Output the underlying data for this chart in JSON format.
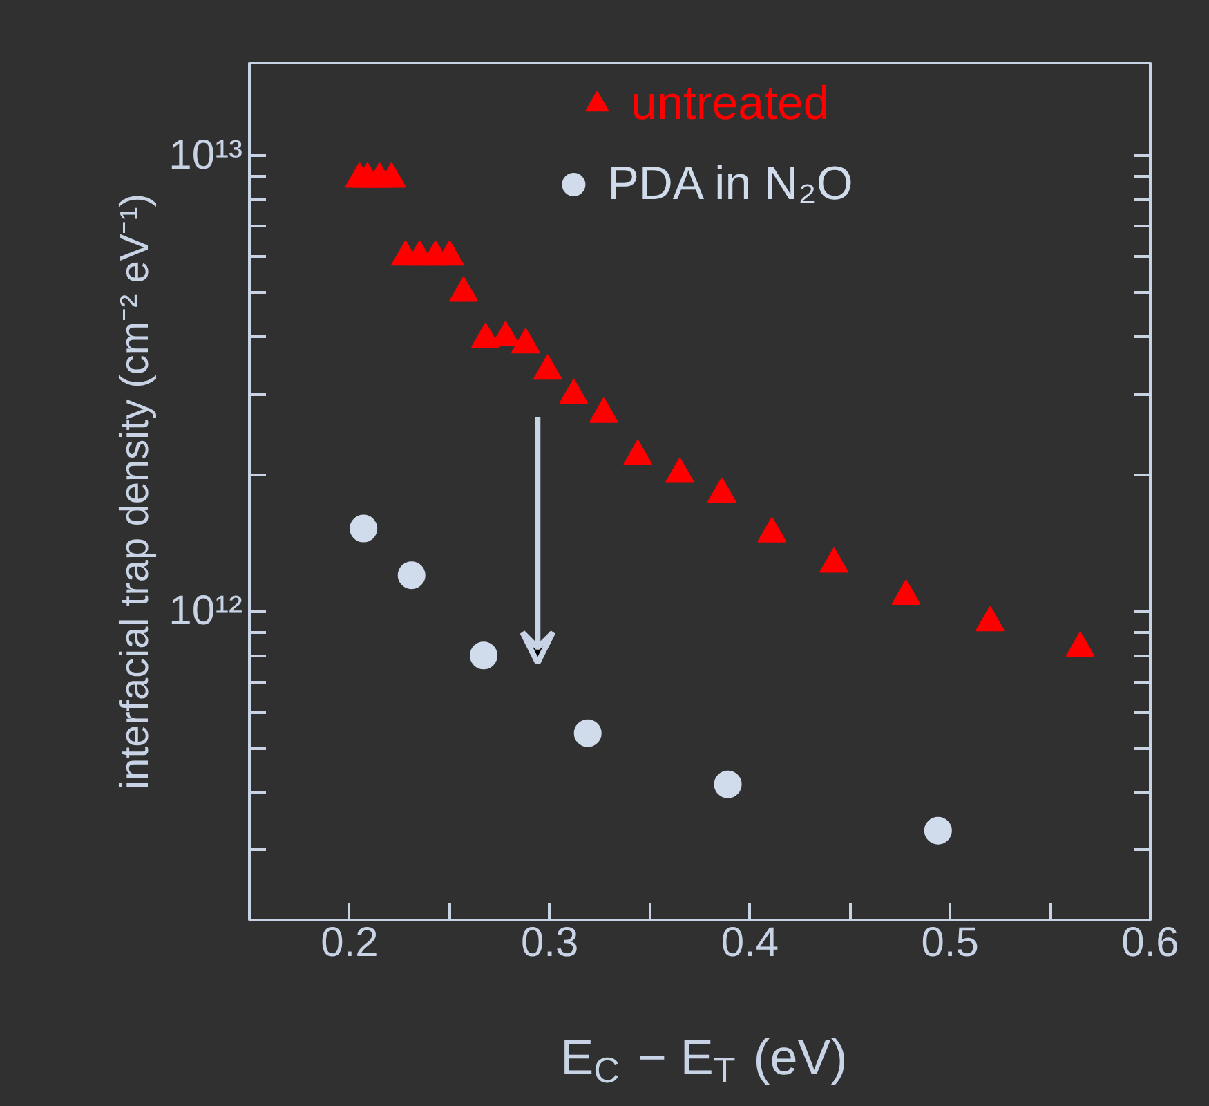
{
  "chart_data": {
    "type": "scatter",
    "log": "y",
    "grid": false,
    "legend": "top",
    "xlabel": "E$_{C}$ − E$_{T}$ (eV)",
    "ylabel": "interfacial trap density (cm⁻² eV⁻¹)",
    "xlim": [
      0.15,
      0.6
    ],
    "xticks": [
      0.2,
      {
        "value": 0.25,
        "label": null
      },
      0.3,
      {
        "value": 0.35,
        "label": null
      },
      0.4,
      {
        "value": 0.45,
        "label": null
      },
      0.5,
      {
        "value": 0.55,
        "label": null
      },
      0.6
    ],
    "ylim": [
      210000000000.0,
      16000000000000.0
    ],
    "yticks": [
      {
        "value": 300000000000.0,
        "label": null
      },
      {
        "value": 400000000000.0,
        "label": null
      },
      {
        "value": 500000000000.0,
        "label": null
      },
      {
        "value": 600000000000.0,
        "label": null
      },
      {
        "value": 700000000000.0,
        "label": null
      },
      {
        "value": 800000000000.0,
        "label": null
      },
      {
        "value": 900000000000.0,
        "label": null
      },
      {
        "value": 1000000000000.0,
        "label": "10¹²"
      },
      {
        "value": 2000000000000.0,
        "label": null
      },
      {
        "value": 3000000000000.0,
        "label": null
      },
      {
        "value": 4000000000000.0,
        "label": null
      },
      {
        "value": 5000000000000.0,
        "label": null
      },
      {
        "value": 6000000000000.0,
        "label": null
      },
      {
        "value": 7000000000000.0,
        "label": null
      },
      {
        "value": 8000000000000.0,
        "label": null
      },
      {
        "value": 9000000000000.0,
        "label": null
      },
      {
        "value": 10000000000000.0,
        "label": "10¹³"
      }
    ],
    "series": [
      {
        "name": "untreated",
        "color": "#ff0000",
        "marker": "triangle",
        "x": [
          0.205,
          0.209,
          0.215,
          0.221,
          0.228,
          0.235,
          0.243,
          0.25,
          0.257,
          0.268,
          0.278,
          0.288,
          0.299,
          0.312,
          0.327,
          0.344,
          0.365,
          0.386,
          0.411,
          0.442,
          0.478,
          0.52,
          0.565
        ],
        "values": [
          8900000000000.0,
          8900000000000.0,
          8900000000000.0,
          8900000000000.0,
          6000000000000.0,
          6000000000000.0,
          6000000000000.0,
          6000000000000.0,
          5000000000000.0,
          3960000000000.0,
          3990000000000.0,
          3850000000000.0,
          3370000000000.0,
          2980000000000.0,
          2710000000000.0,
          2190000000000.0,
          2000000000000.0,
          1810000000000.0,
          1480000000000.0,
          1270000000000.0,
          1080000000000.0,
          945000000000.0,
          830000000000.0
        ]
      },
      {
        "name": "PDA in N₂O",
        "color": "#d0dcec",
        "marker": "circle",
        "x": [
          0.207,
          0.231,
          0.267,
          0.319,
          0.389,
          0.494
        ],
        "values": [
          1520000000000.0,
          1200000000000.0,
          800000000000.0,
          540000000000.0,
          417000000000.0,
          330000000000.0
        ]
      }
    ]
  }
}
